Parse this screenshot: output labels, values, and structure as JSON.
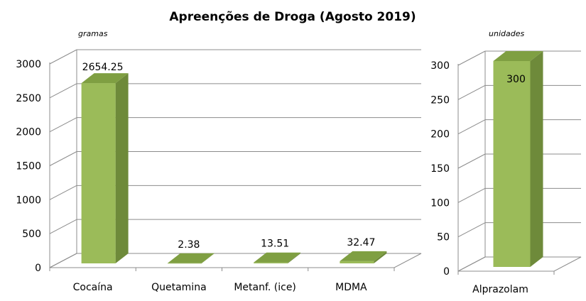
{
  "title": "Apreenções de Droga (Agosto 2019)",
  "colors": {
    "bar_front": "#9bbb59",
    "bar_side": "#6e8a3a",
    "bar_top": "#7f9f42",
    "grid": "#8c8c8c",
    "text": "#000000"
  },
  "chart_data": [
    {
      "type": "bar",
      "unit_label": "gramas",
      "categories": [
        "Cocaína",
        "Quetamina",
        "Metanf. (ice)",
        "MDMA"
      ],
      "values": [
        2654.25,
        2.38,
        13.51,
        32.47
      ],
      "data_labels": [
        "2654.25",
        "2.38",
        "13.51",
        "32.47"
      ],
      "ylim": [
        0,
        3000
      ],
      "yticks": [
        "0",
        "500",
        "1000",
        "1500",
        "2000",
        "2500",
        "3000"
      ],
      "grid": true
    },
    {
      "type": "bar",
      "unit_label": "unidades",
      "categories": [
        "Alprazolam"
      ],
      "values": [
        300
      ],
      "data_labels": [
        "300"
      ],
      "ylim": [
        0,
        300
      ],
      "yticks": [
        "0",
        "50",
        "100",
        "150",
        "200",
        "250",
        "300"
      ],
      "grid": true
    }
  ]
}
